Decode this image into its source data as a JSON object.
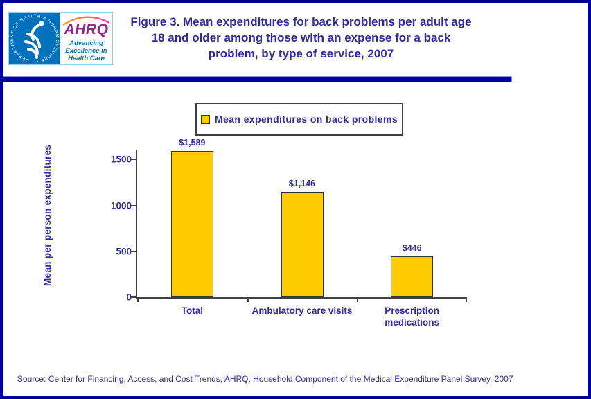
{
  "header": {
    "logo": {
      "seal_text": "DEPARTMENT OF HEALTH & HUMAN SERVICES • USA",
      "acronym": "AHRQ",
      "tagline": "Advancing\nExcellence in\nHealth Care"
    },
    "title": "Figure 3. Mean expenditures for back problems per adult age 18 and older among those with an expense for a back problem, by type of service, 2007"
  },
  "legend": {
    "label": "Mean expenditures on back problems",
    "swatch_color": "#FFCC00"
  },
  "chart_data": {
    "type": "bar",
    "title": "Figure 3. Mean expenditures for back problems per adult age 18 and older among those with an expense for a back problem, by type of service, 2007",
    "categories": [
      "Total",
      "Ambulatory care visits",
      "Prescription medications"
    ],
    "values": [
      1589,
      1146,
      446
    ],
    "value_labels": [
      "$1,589",
      "$1,146",
      "$446"
    ],
    "xlabel": "",
    "ylabel": "Mean per person expenditures",
    "ylim": [
      0,
      1600
    ],
    "yticks": [
      0,
      500,
      1000,
      1500
    ],
    "grid": false,
    "legend_position": "top-center",
    "legend_entries": [
      "Mean expenditures on back problems"
    ],
    "bar_color": "#FFCC00"
  },
  "source": "Source: Center for Financing, Access, and Cost Trends, AHRQ, Household Component of the Medical Expenditure Panel Survey, 2007",
  "colors": {
    "navy_text": "#2D2B9B",
    "page_border": "#0000A0",
    "bar": "#FFCC00",
    "hhs_blue": "#0071BC",
    "ahrq_purple": "#91278D"
  }
}
